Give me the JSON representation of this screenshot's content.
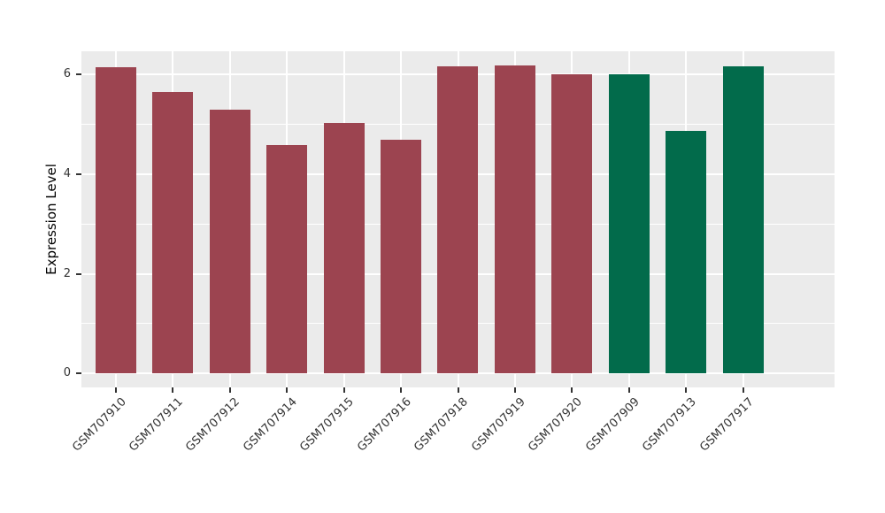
{
  "chart_data": {
    "type": "bar",
    "title": "",
    "xlabel": "",
    "ylabel": "Expression Level",
    "categories": [
      "GSM707910",
      "GSM707911",
      "GSM707912",
      "GSM707914",
      "GSM707915",
      "GSM707916",
      "GSM707918",
      "GSM707919",
      "GSM707920",
      "GSM707909",
      "GSM707913",
      "GSM707917"
    ],
    "values": [
      6.15,
      5.65,
      5.3,
      4.59,
      5.04,
      4.7,
      6.17,
      6.19,
      6.01,
      6.0,
      4.87,
      6.17
    ],
    "bar_groups": [
      "red",
      "red",
      "red",
      "red",
      "red",
      "red",
      "red",
      "red",
      "red",
      "green",
      "green",
      "green"
    ],
    "group_colors": {
      "red": "#9C4450",
      "green": "#026B4B"
    },
    "yticks": [
      0,
      2,
      4,
      6
    ],
    "yticks_minor": [
      1,
      3,
      5
    ],
    "ylim": [
      -0.28,
      6.47
    ],
    "grid": "on",
    "legend": "none",
    "panel_bg": "#EBEBEB",
    "grid_color": "#FFFFFF",
    "tick_color": "#333333",
    "text_color": "#333333"
  }
}
